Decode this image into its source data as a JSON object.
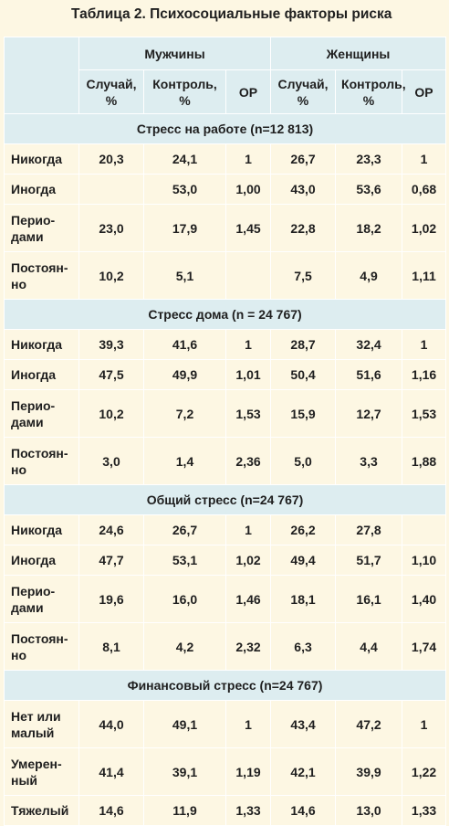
{
  "title": "Таблица 2. Психосоциальные факторы риска",
  "groups": {
    "men": "Мужчины",
    "women": "Женщины"
  },
  "columns": {
    "cases_1": "Случай,",
    "cases_2": "%",
    "control_1": "Контроль,",
    "control_2": "%",
    "or": "ОР"
  },
  "sections": [
    {
      "title": "Стресс на работе (n=12 813)",
      "rows": [
        {
          "label": [
            "Никогда"
          ],
          "men": [
            "20,3",
            "24,1",
            "1"
          ],
          "women": [
            "26,7",
            "23,3",
            "1"
          ]
        },
        {
          "label": [
            "Иногда"
          ],
          "men": [
            "",
            "53,0",
            "1,00"
          ],
          "women": [
            "43,0",
            "53,6",
            "0,68"
          ]
        },
        {
          "label": [
            "Перио-",
            "дами"
          ],
          "men": [
            "23,0",
            "17,9",
            "1,45"
          ],
          "women": [
            "22,8",
            "18,2",
            "1,02"
          ]
        },
        {
          "label": [
            "Постоян-",
            "но"
          ],
          "men": [
            "10,2",
            "5,1",
            ""
          ],
          "women": [
            "7,5",
            "4,9",
            "1,11"
          ]
        }
      ]
    },
    {
      "title": "Стресс дома (n = 24 767)",
      "rows": [
        {
          "label": [
            "Никогда"
          ],
          "men": [
            "39,3",
            "41,6",
            "1"
          ],
          "women": [
            "28,7",
            "32,4",
            "1"
          ]
        },
        {
          "label": [
            "Иногда"
          ],
          "men": [
            "47,5",
            "49,9",
            "1,01"
          ],
          "women": [
            "50,4",
            "51,6",
            "1,16"
          ]
        },
        {
          "label": [
            "Перио-",
            "дами"
          ],
          "men": [
            "10,2",
            "7,2",
            "1,53"
          ],
          "women": [
            "15,9",
            "12,7",
            "1,53"
          ]
        },
        {
          "label": [
            "Постоян-",
            "но"
          ],
          "men": [
            "3,0",
            "1,4",
            "2,36"
          ],
          "women": [
            "5,0",
            "3,3",
            "1,88"
          ]
        }
      ]
    },
    {
      "title": "Общий стресс (n=24 767)",
      "rows": [
        {
          "label": [
            "Никогда"
          ],
          "men": [
            "24,6",
            "26,7",
            "1"
          ],
          "women": [
            "26,2",
            "27,8",
            ""
          ]
        },
        {
          "label": [
            "Иногда"
          ],
          "men": [
            "47,7",
            "53,1",
            "1,02"
          ],
          "women": [
            "49,4",
            "51,7",
            "1,10"
          ]
        },
        {
          "label": [
            "Перио-",
            "дами"
          ],
          "men": [
            "19,6",
            "16,0",
            "1,46"
          ],
          "women": [
            "18,1",
            "16,1",
            "1,40"
          ]
        },
        {
          "label": [
            "Постоян-",
            "но"
          ],
          "men": [
            "8,1",
            "4,2",
            "2,32"
          ],
          "women": [
            "6,3",
            "4,4",
            "1,74"
          ]
        }
      ]
    },
    {
      "title": "Финансовый стресс (n=24 767)",
      "rows": [
        {
          "label": [
            "Нет или",
            "малый"
          ],
          "men": [
            "44,0",
            "49,1",
            "1"
          ],
          "women": [
            "43,4",
            "47,2",
            "1"
          ]
        },
        {
          "label": [
            "Умерен-",
            "ный"
          ],
          "men": [
            "41,4",
            "39,1",
            "1,19"
          ],
          "women": [
            "42,1",
            "39,9",
            "1,22"
          ]
        },
        {
          "label": [
            "Тяжелый"
          ],
          "men": [
            "14,6",
            "11,9",
            "1,33"
          ],
          "women": [
            "14,6",
            "13,0",
            "1,33"
          ]
        }
      ]
    }
  ]
}
